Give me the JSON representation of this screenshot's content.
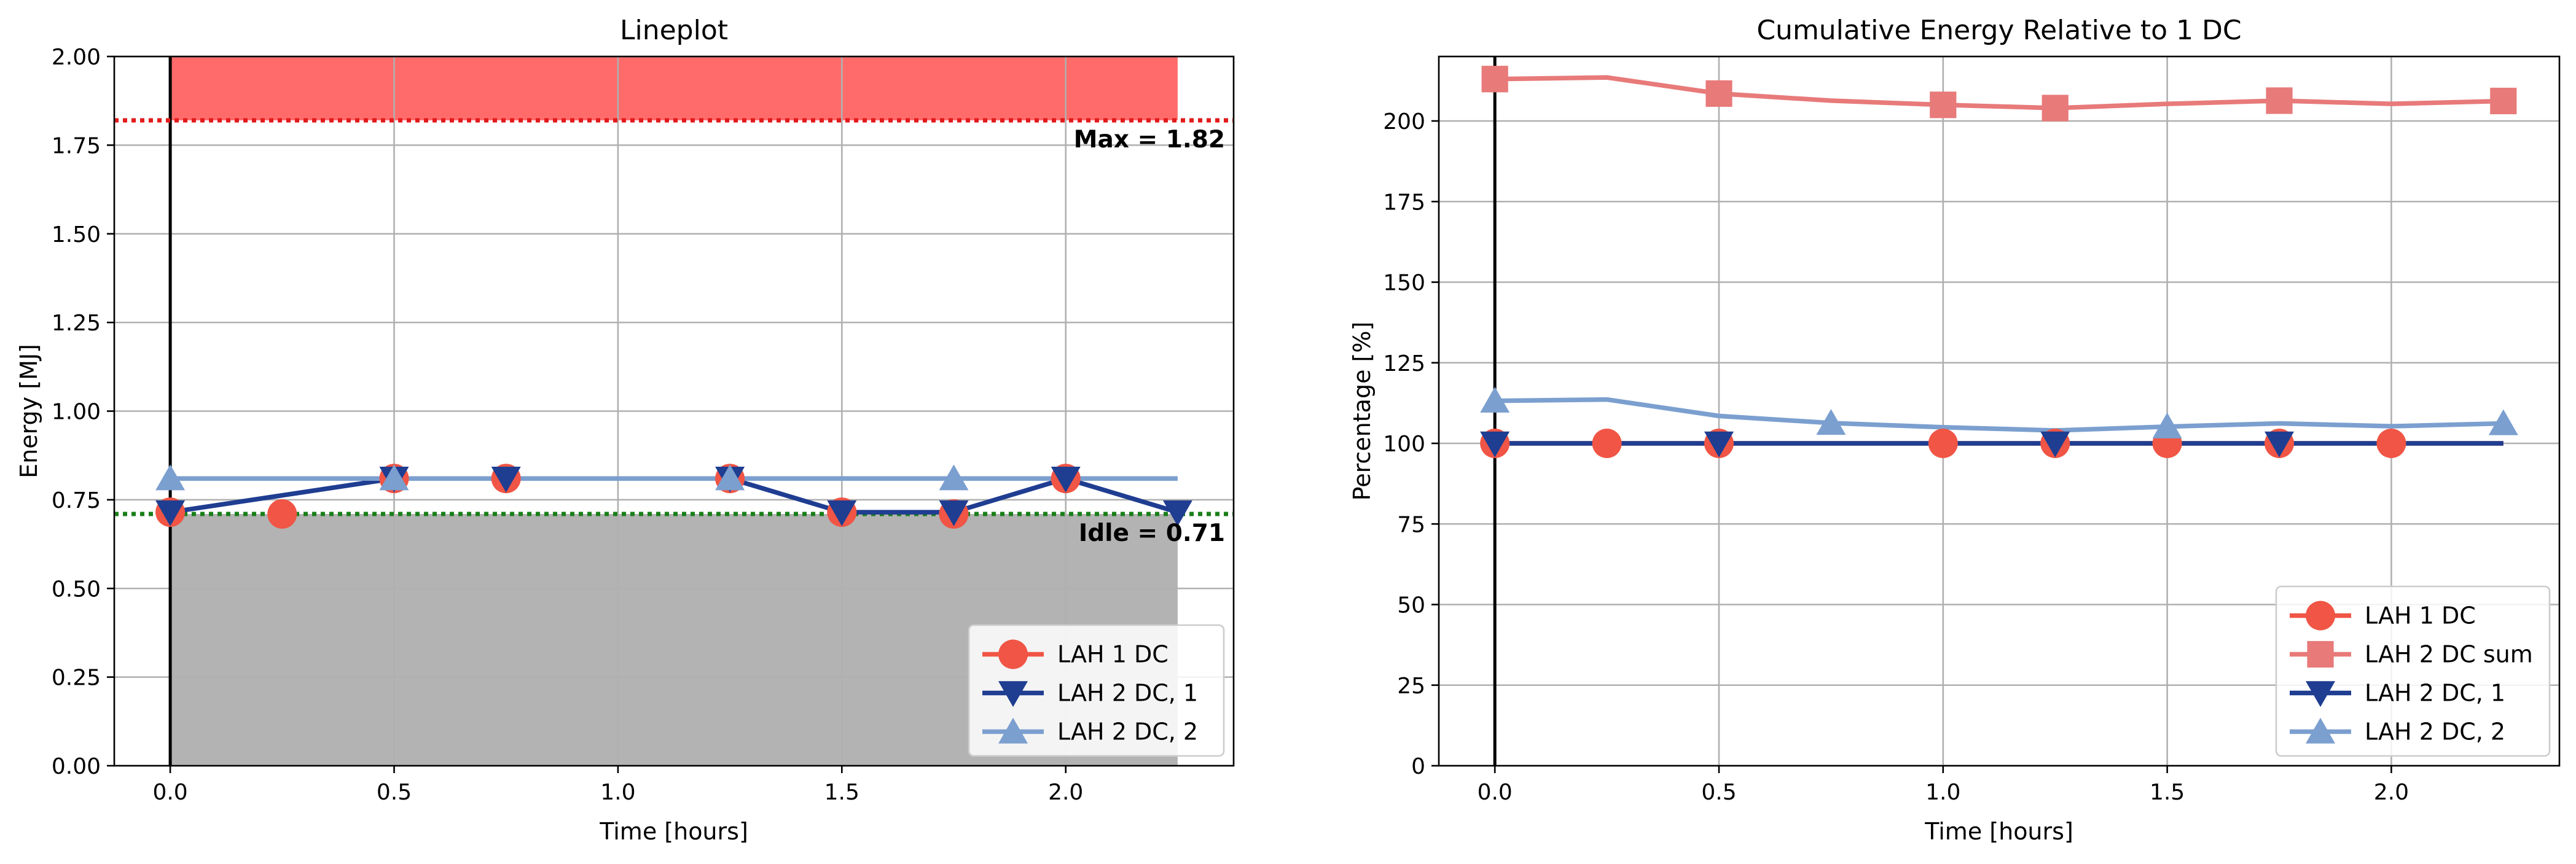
{
  "chart_data": [
    {
      "type": "line",
      "title": "Lineplot",
      "xlabel": "Time [hours]",
      "ylabel": "Energy [MJ]",
      "xlim": [
        -0.125,
        2.375
      ],
      "ylim": [
        0,
        2
      ],
      "xticks": [
        0,
        0.5,
        1,
        1.5,
        2
      ],
      "xtick_labels": [
        "0.0",
        "0.5",
        "1.0",
        "1.5",
        "2.0"
      ],
      "yticks": [
        0,
        0.25,
        0.5,
        0.75,
        1,
        1.25,
        1.5,
        1.75,
        2
      ],
      "ytick_labels": [
        "0.00",
        "0.25",
        "0.50",
        "0.75",
        "1.00",
        "1.25",
        "1.50",
        "1.75",
        "2.00"
      ],
      "grid": true,
      "legend_position": "lower-right",
      "vline_x": 0,
      "max_band": {
        "y_from": 1.82,
        "y_to": 2.0,
        "x_from": 0,
        "x_to": 2.25,
        "color": "#ff6b6b"
      },
      "idle_band": {
        "y_from": 0,
        "y_to": 0.71,
        "x_from": 0,
        "x_to": 2.25,
        "color": "#b3b3b3"
      },
      "hlines": [
        {
          "y": 1.82,
          "color": "#e31a1c",
          "label": "Max = 1.82"
        },
        {
          "y": 0.71,
          "color": "#1a7f1a",
          "label": "Idle = 0.71"
        }
      ],
      "series": [
        {
          "name": "LAH 1 DC",
          "color": "#f05545",
          "marker": "circle",
          "line": false,
          "x": [
            0,
            0.25,
            0.5,
            0.75,
            1.25,
            1.5,
            1.75,
            2
          ],
          "y": [
            0.715,
            0.71,
            0.81,
            0.81,
            0.81,
            0.715,
            0.71,
            0.81
          ]
        },
        {
          "name": "LAH 2 DC, 1",
          "color": "#1f3d91",
          "marker": "triangle-down",
          "line": true,
          "x": [
            0,
            0.5,
            0.75,
            1.25,
            1.5,
            1.75,
            2,
            2.25
          ],
          "y": [
            0.715,
            0.81,
            0.81,
            0.81,
            0.715,
            0.715,
            0.81,
            0.715
          ]
        },
        {
          "name": "LAH 2 DC, 2",
          "color": "#7b9fcf",
          "marker": "triangle-up",
          "line": true,
          "x": [
            0,
            0.5,
            1.25,
            1.75,
            2.25
          ],
          "y": [
            0.81,
            0.81,
            0.81,
            0.81,
            0.81
          ],
          "marker_x": [
            0,
            0.5,
            1.25,
            1.75
          ]
        }
      ]
    },
    {
      "type": "line",
      "title": "Cumulative Energy Relative to 1 DC",
      "xlabel": "Time [hours]",
      "ylabel": "Percentage [%]",
      "xlim": [
        -0.125,
        2.375
      ],
      "ylim": [
        0,
        220
      ],
      "xticks": [
        0,
        0.5,
        1,
        1.5,
        2
      ],
      "xtick_labels": [
        "0.0",
        "0.5",
        "1.0",
        "1.5",
        "2.0"
      ],
      "yticks": [
        0,
        25,
        50,
        75,
        100,
        125,
        150,
        175,
        200
      ],
      "ytick_labels": [
        "0",
        "25",
        "50",
        "75",
        "100",
        "125",
        "150",
        "175",
        "200"
      ],
      "grid": true,
      "legend_position": "lower-right",
      "vline_x": 0,
      "series": [
        {
          "name": "LAH 1 DC",
          "color": "#f05545",
          "marker": "circle",
          "line": true,
          "x": [
            0,
            0.25,
            0.5,
            1,
            1.25,
            1.5,
            1.75,
            2
          ],
          "y": [
            100,
            100,
            100,
            100,
            100,
            100,
            100,
            100
          ],
          "line_to": 2.25
        },
        {
          "name": "LAH 2 DC sum",
          "color": "#e87a7a",
          "marker": "square",
          "line": true,
          "x": [
            0,
            0.25,
            0.5,
            0.75,
            1,
            1.25,
            1.5,
            1.75,
            2,
            2.25
          ],
          "y": [
            213,
            213.5,
            208.5,
            206.3,
            205,
            204,
            205.3,
            206.3,
            205.3,
            206.2
          ],
          "marker_x": [
            0,
            0.5,
            1,
            1.25,
            1.75,
            2.25
          ]
        },
        {
          "name": "LAH 2 DC, 1",
          "color": "#1f3d91",
          "marker": "triangle-down",
          "line": true,
          "x": [
            0,
            0.25,
            0.5,
            0.75,
            1,
            1.25,
            1.5,
            1.75,
            2,
            2.25
          ],
          "y": [
            100,
            100,
            100,
            100,
            100,
            100,
            100,
            100,
            100,
            100
          ],
          "marker_x": [
            0,
            0.5,
            1.25,
            1.75
          ]
        },
        {
          "name": "LAH 2 DC, 2",
          "color": "#7b9fcf",
          "marker": "triangle-up",
          "line": true,
          "x": [
            0,
            0.25,
            0.5,
            0.75,
            1,
            1.25,
            1.5,
            1.75,
            2,
            2.25
          ],
          "y": [
            113.2,
            113.6,
            108.5,
            106.3,
            105,
            104,
            105.2,
            106.2,
            105.3,
            106.2
          ],
          "marker_x": [
            0,
            0.75,
            1.5,
            2.25
          ]
        }
      ]
    }
  ]
}
